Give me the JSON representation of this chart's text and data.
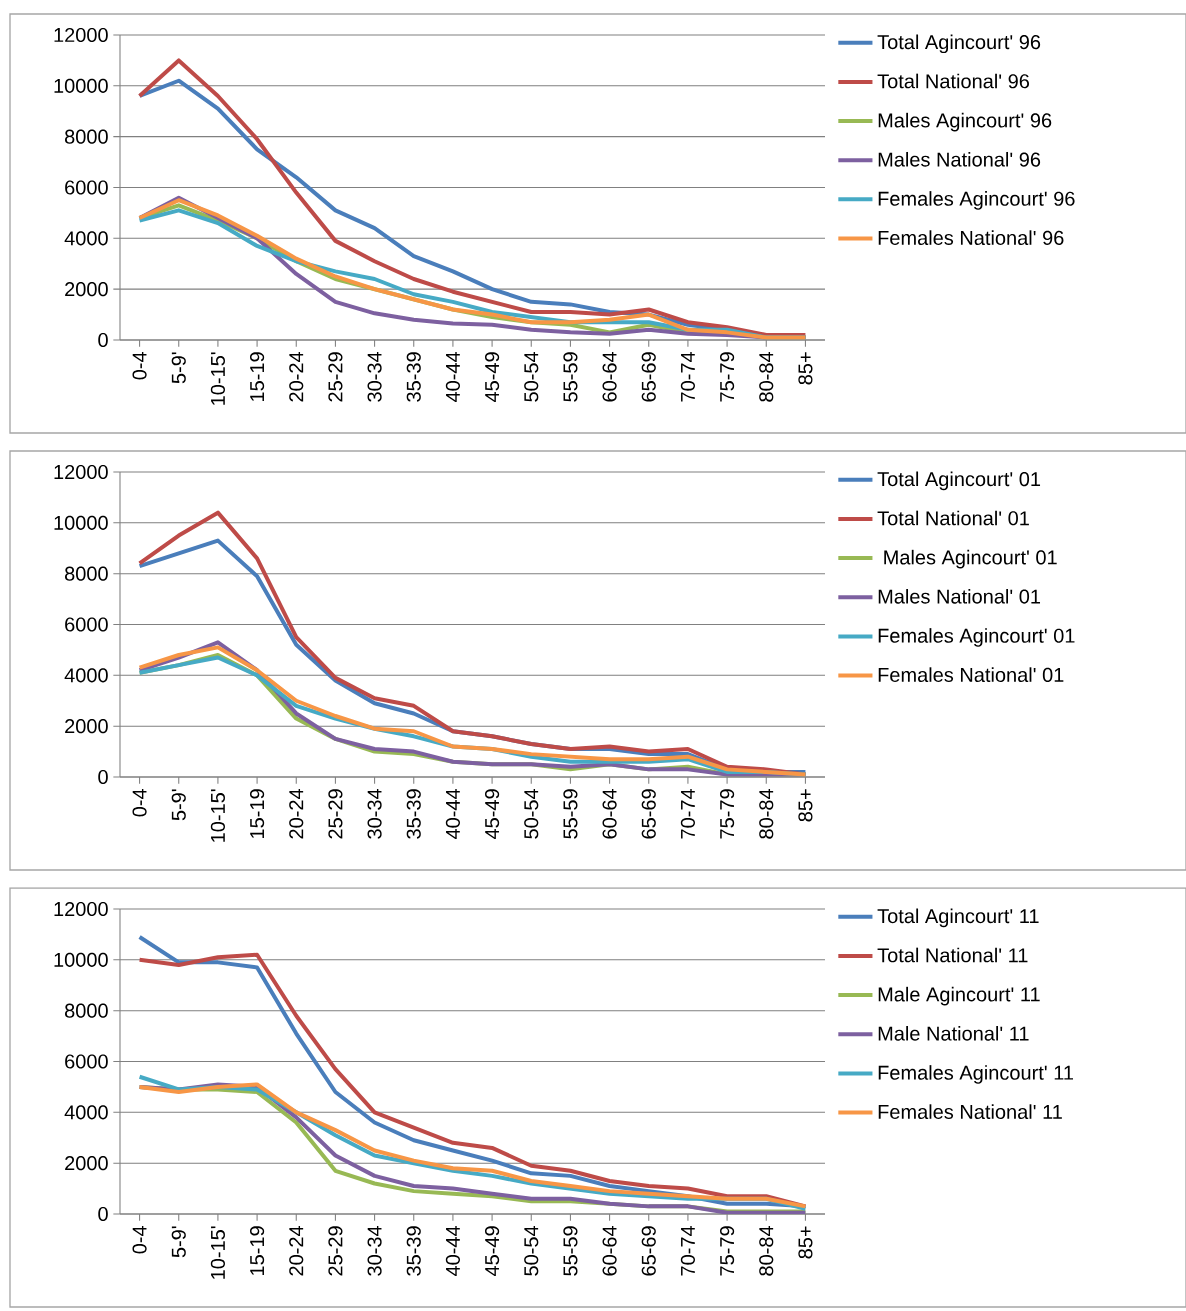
{
  "chart_data": [
    {
      "type": "line",
      "categories": [
        "0-4",
        "5-9'",
        "10-15'",
        "15-19",
        "20-24",
        "25-29",
        "30-34",
        "35-39",
        "40-44",
        "45-49",
        "50-54",
        "55-59",
        "60-64",
        "65-69",
        "70-74",
        "75-79",
        "80-84",
        "85+"
      ],
      "ylim": [
        0,
        12000
      ],
      "yticks": [
        0,
        2000,
        4000,
        6000,
        8000,
        10000,
        12000
      ],
      "grid": "y",
      "legend": "right",
      "series": [
        {
          "name": "Total Agincourt' 96",
          "color": "#4a7ebb",
          "values": [
            9600,
            10200,
            9100,
            7500,
            6400,
            5100,
            4400,
            3300,
            2700,
            2000,
            1500,
            1400,
            1100,
            1000,
            600,
            400,
            100,
            100
          ]
        },
        {
          "name": "Total National' 96",
          "color": "#be4b48",
          "values": [
            9600,
            11000,
            9600,
            7900,
            5800,
            3900,
            3100,
            2400,
            1900,
            1500,
            1100,
            1100,
            1000,
            1200,
            700,
            500,
            200,
            200
          ]
        },
        {
          "name": "Males Agincourt' 96",
          "color": "#98b954",
          "values": [
            4800,
            5300,
            4700,
            4000,
            3100,
            2400,
            2000,
            1600,
            1200,
            900,
            700,
            600,
            300,
            600,
            300,
            300,
            100,
            100
          ]
        },
        {
          "name": "Males National' 96",
          "color": "#7d60a0",
          "values": [
            4800,
            5600,
            4800,
            4000,
            2600,
            1500,
            1050,
            800,
            650,
            600,
            400,
            300,
            250,
            400,
            250,
            200,
            100,
            100
          ]
        },
        {
          "name": "Females Agincourt' 96",
          "color": "#46aac5",
          "values": [
            4700,
            5100,
            4600,
            3700,
            3100,
            2700,
            2400,
            1800,
            1500,
            1100,
            900,
            700,
            700,
            700,
            400,
            400,
            100,
            100
          ]
        },
        {
          "name": "Females National' 96",
          "color": "#f79646",
          "values": [
            4800,
            5500,
            4900,
            4100,
            3200,
            2500,
            2000,
            1600,
            1200,
            1000,
            700,
            700,
            800,
            1000,
            400,
            300,
            100,
            100
          ]
        }
      ]
    },
    {
      "type": "line",
      "categories": [
        "0-4",
        "5-9'",
        "10-15'",
        "15-19",
        "20-24",
        "25-29",
        "30-34",
        "35-39",
        "40-44",
        "45-49",
        "50-54",
        "55-59",
        "60-64",
        "65-69",
        "70-74",
        "75-79",
        "80-84",
        "85+"
      ],
      "ylim": [
        0,
        12000
      ],
      "yticks": [
        0,
        2000,
        4000,
        6000,
        8000,
        10000,
        12000
      ],
      "grid": "y",
      "legend": "right",
      "series": [
        {
          "name": "Total Agincourt' 01",
          "color": "#4a7ebb",
          "values": [
            8300,
            8800,
            9300,
            7900,
            5200,
            3800,
            2900,
            2500,
            1800,
            1600,
            1300,
            1100,
            1100,
            900,
            900,
            300,
            200,
            200
          ]
        },
        {
          "name": "Total National' 01",
          "color": "#be4b48",
          "values": [
            8400,
            9500,
            10400,
            8600,
            5500,
            3900,
            3100,
            2800,
            1800,
            1600,
            1300,
            1100,
            1200,
            1000,
            1100,
            400,
            300,
            100
          ]
        },
        {
          "name": " Males Agincourt' 01",
          "color": "#98b954",
          "values": [
            4100,
            4400,
            4800,
            4000,
            2300,
            1500,
            1000,
            900,
            600,
            500,
            500,
            300,
            500,
            300,
            400,
            100,
            100,
            100
          ]
        },
        {
          "name": "Males National' 01",
          "color": "#7d60a0",
          "values": [
            4200,
            4700,
            5300,
            4200,
            2500,
            1500,
            1100,
            1000,
            600,
            500,
            500,
            400,
            500,
            300,
            300,
            100,
            100,
            100
          ]
        },
        {
          "name": "Females Agincourt' 01",
          "color": "#46aac5",
          "values": [
            4100,
            4400,
            4700,
            4000,
            2800,
            2300,
            1900,
            1600,
            1200,
            1100,
            800,
            600,
            600,
            600,
            700,
            200,
            200,
            100
          ]
        },
        {
          "name": "Females National' 01",
          "color": "#f79646",
          "values": [
            4300,
            4800,
            5100,
            4200,
            3000,
            2400,
            1900,
            1800,
            1200,
            1100,
            900,
            800,
            700,
            700,
            800,
            300,
            200,
            100
          ]
        }
      ]
    },
    {
      "type": "line",
      "categories": [
        "0-4",
        "5-9'",
        "10-15'",
        "15-19",
        "20-24",
        "25-29",
        "30-34",
        "35-39",
        "40-44",
        "45-49",
        "50-54",
        "55-59",
        "60-64",
        "65-69",
        "70-74",
        "75-79",
        "80-84",
        "85+"
      ],
      "ylim": [
        0,
        12000
      ],
      "yticks": [
        0,
        2000,
        4000,
        6000,
        8000,
        10000,
        12000
      ],
      "grid": "y",
      "legend": "right",
      "series": [
        {
          "name": "Total Agincourt' 11",
          "color": "#4a7ebb",
          "values": [
            10900,
            9900,
            9900,
            9700,
            7100,
            4800,
            3600,
            2900,
            2500,
            2100,
            1600,
            1500,
            1100,
            900,
            700,
            400,
            400,
            300
          ]
        },
        {
          "name": "Total National' 11",
          "color": "#be4b48",
          "values": [
            10000,
            9800,
            10100,
            10200,
            7800,
            5700,
            4000,
            3400,
            2800,
            2600,
            1900,
            1700,
            1300,
            1100,
            1000,
            700,
            700,
            300
          ]
        },
        {
          "name": "Male Agincourt' 11",
          "color": "#98b954",
          "values": [
            5000,
            4900,
            4900,
            4800,
            3600,
            1700,
            1200,
            900,
            800,
            700,
            500,
            500,
            400,
            300,
            300,
            100,
            100,
            100
          ]
        },
        {
          "name": "Male National' 11",
          "color": "#7d60a0",
          "values": [
            5000,
            4900,
            5100,
            5000,
            3800,
            2300,
            1500,
            1100,
            1000,
            800,
            600,
            600,
            400,
            300,
            300,
            50,
            50,
            50
          ]
        },
        {
          "name": "Females Agincourt' 11",
          "color": "#46aac5",
          "values": [
            5400,
            4900,
            5000,
            4900,
            4000,
            3100,
            2300,
            2000,
            1700,
            1500,
            1200,
            1000,
            800,
            700,
            600,
            600,
            600,
            200
          ]
        },
        {
          "name": "Females National' 11",
          "color": "#f79646",
          "values": [
            5000,
            4800,
            5000,
            5100,
            4000,
            3300,
            2500,
            2100,
            1800,
            1700,
            1300,
            1100,
            900,
            800,
            700,
            600,
            600,
            300
          ]
        }
      ]
    }
  ]
}
